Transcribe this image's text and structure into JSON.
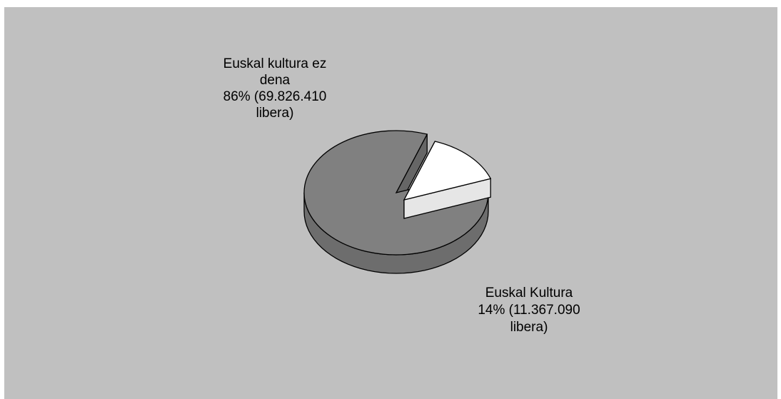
{
  "chart_data": {
    "type": "pie",
    "title": "",
    "slices": [
      {
        "name": "Euskal kultura ez dena",
        "percent": 86,
        "value": 69826410,
        "color": "#808080",
        "label_lines": [
          "Euskal kultura ez",
          "dena",
          "86% (69.826.410",
          "libera)"
        ]
      },
      {
        "name": "Euskal Kultura",
        "percent": 14,
        "value": 11367090,
        "color": "#ffffff",
        "label_lines": [
          "Euskal Kultura",
          "14% (11.367.090",
          "libera)"
        ]
      }
    ],
    "style": "3d-exploded",
    "background": "#c0c0c0",
    "legend": "none"
  }
}
